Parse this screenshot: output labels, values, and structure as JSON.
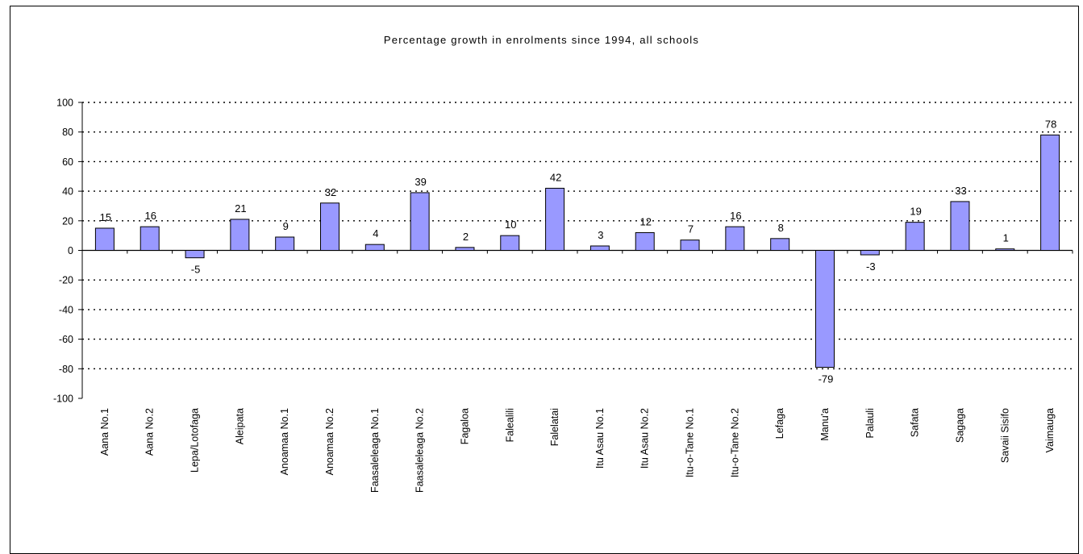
{
  "chart_data": {
    "type": "bar",
    "title": "Percentage growth in enrolments since 1994, all schools",
    "xlabel": "",
    "ylabel": "",
    "ylim": [
      -100,
      100
    ],
    "yticks": [
      "100",
      "80",
      "60",
      "40",
      "20",
      "0",
      "-20",
      "-40",
      "-60",
      "-80",
      "-100"
    ],
    "ytick_values": [
      100,
      80,
      60,
      40,
      20,
      0,
      -20,
      -40,
      -60,
      -80,
      -100
    ],
    "grid": true,
    "legend": "none",
    "bar_color": "#9999ff",
    "categories": [
      "Aana No.1",
      "Aana No.2",
      "Lepa/Lotofaga",
      "Aleipata",
      "Anoamaa No.1",
      "Anoamaa No.2",
      "Faasaleleaga No.1",
      "Faasaleleaga No.2",
      "Fagaloa",
      "Falealili",
      "Falelatai",
      "Itu Asau No.1",
      "Itu Asau No.2",
      "Itu-o-Tane No.1",
      "Itu-o-Tane No.2",
      "Lefaga",
      "Manu'a",
      "Palauli",
      "Safata",
      "Sagaga",
      "Savaii Sisifo",
      "Vaimauga"
    ],
    "values": [
      15,
      16,
      -5,
      21,
      9,
      32,
      4,
      39,
      2,
      10,
      42,
      3,
      12,
      7,
      16,
      8,
      -79,
      -3,
      19,
      33,
      1,
      78
    ],
    "value_labels": [
      "15",
      "16",
      "-5",
      "21",
      "9",
      "32",
      "4",
      "39",
      "2",
      "10",
      "42",
      "3",
      "12",
      "7",
      "16",
      "8",
      "-79",
      "-3",
      "19",
      "33",
      "1",
      "78"
    ]
  }
}
